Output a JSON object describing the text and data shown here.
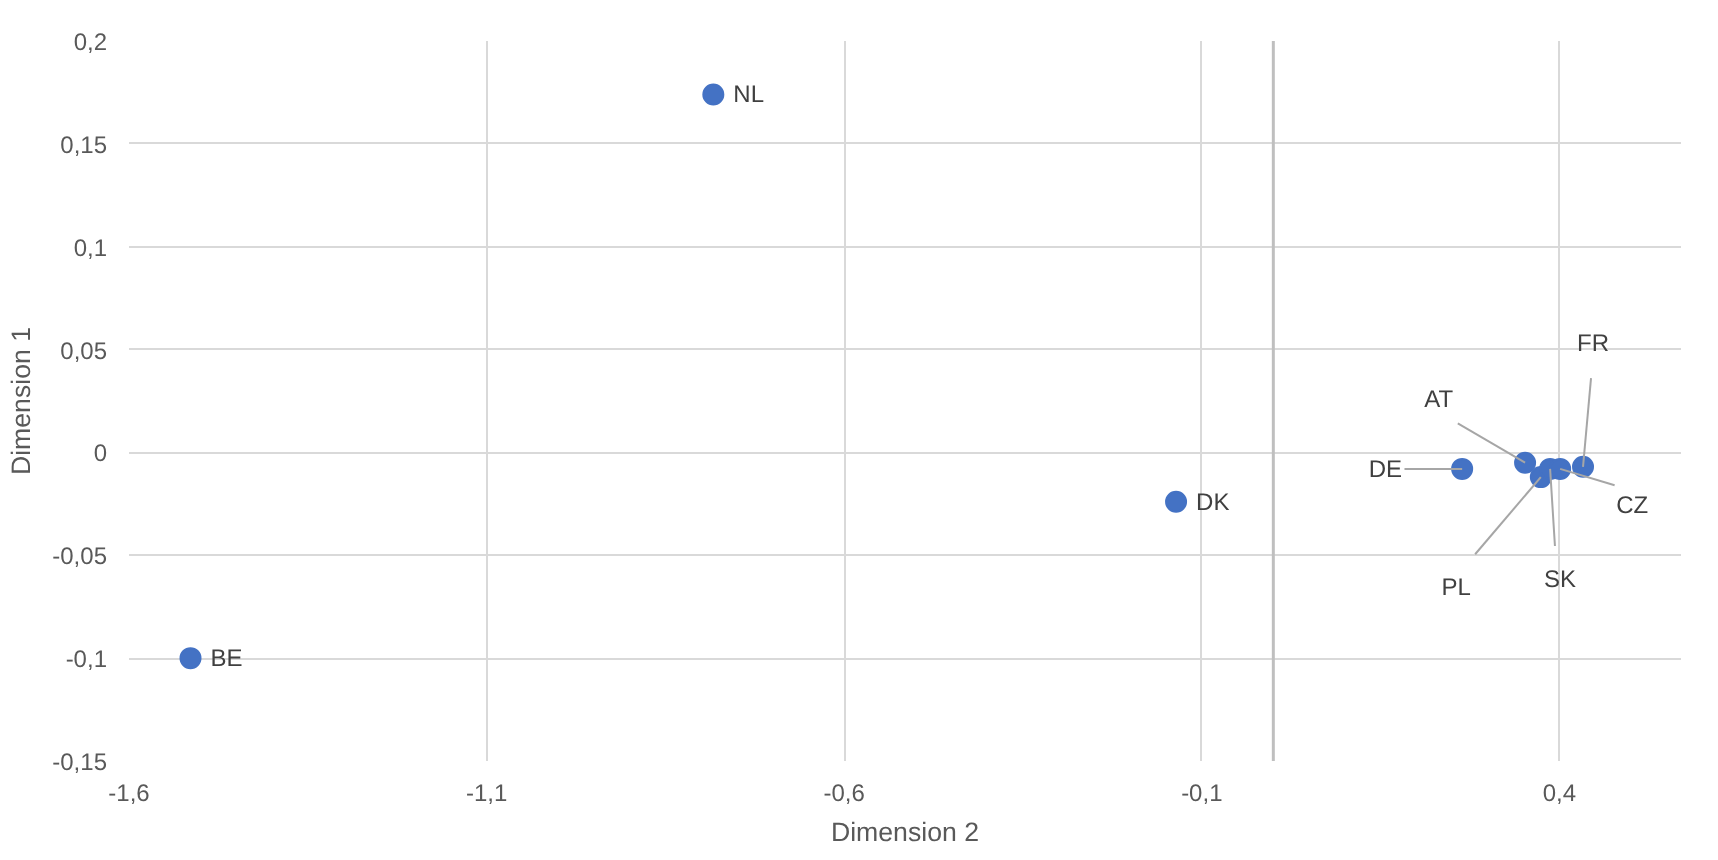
{
  "chart_data": {
    "type": "scatter",
    "xlabel": "Dimension 2",
    "ylabel": "Dimension 1",
    "series": [
      {
        "color": "#4472c4",
        "x": [
          -1.514,
          -0.783,
          -0.136,
          0.264,
          0.352,
          0.374,
          0.387,
          0.401,
          0.433
        ],
        "values": [
          -0.1,
          0.174,
          -0.024,
          -0.008,
          -0.005,
          -0.012,
          -0.008,
          -0.008,
          -0.007
        ],
        "value_labels": [
          "BE",
          "NL",
          "DK",
          "DE",
          "AT",
          "PL",
          "SK",
          "CZ",
          "FR"
        ]
      }
    ],
    "xlim": [
      -1.6,
      0.57
    ],
    "ylim": [
      -0.15,
      0.2
    ],
    "xticks": [
      {
        "value": -1.6,
        "label": "-1,6"
      },
      {
        "value": -1.1,
        "label": "-1,1"
      },
      {
        "value": -0.6,
        "label": "-0,6"
      },
      {
        "value": -0.1,
        "label": "-0,1"
      },
      {
        "value": 0.4,
        "label": "0,4"
      }
    ],
    "yticks": [
      {
        "value": -0.15,
        "label": "-0,15"
      },
      {
        "value": -0.1,
        "label": "-0,1"
      },
      {
        "value": -0.05,
        "label": "-0,05"
      },
      {
        "value": 0,
        "label": "0"
      },
      {
        "value": 0.05,
        "label": "0,05"
      },
      {
        "value": 0.1,
        "label": "0,1"
      },
      {
        "value": 0.15,
        "label": "0,15"
      },
      {
        "value": 0.2,
        "label": "0,2"
      }
    ],
    "ref_lines": [
      {
        "axis": "x",
        "value": 0,
        "color": "#bfbfbf"
      }
    ],
    "grid": true,
    "marker": "circle"
  }
}
